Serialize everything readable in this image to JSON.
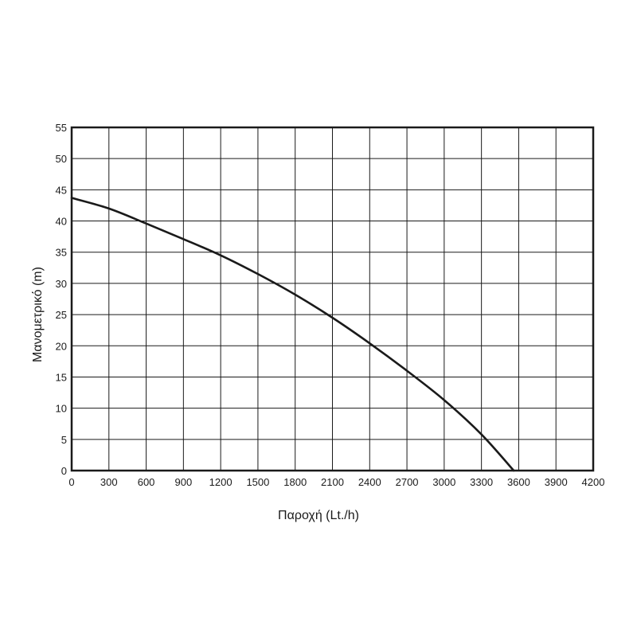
{
  "chart_data": {
    "type": "line",
    "xlabel": "Παροχή (Lt./h)",
    "ylabel": "Μανομετρικό  (m)",
    "xlim": [
      0,
      4200
    ],
    "ylim": [
      0,
      55
    ],
    "x_ticks": [
      "0",
      "300",
      "600",
      "900",
      "1200",
      "1500",
      "1800",
      "2100",
      "2400",
      "2700",
      "3000",
      "3300",
      "3600",
      "3900",
      "4200"
    ],
    "y_ticks": [
      "0",
      "5",
      "10",
      "15",
      "20",
      "25",
      "30",
      "35",
      "40",
      "45",
      "50",
      "55"
    ],
    "grid": true,
    "series": [
      {
        "color": "#1a1a1a",
        "x": [
          0,
          300,
          600,
          900,
          1200,
          1500,
          1800,
          2100,
          2400,
          2700,
          3000,
          3300,
          3560
        ],
        "y": [
          43.7,
          42.0,
          39.6,
          37.1,
          34.5,
          31.5,
          28.2,
          24.5,
          20.4,
          16.0,
          11.3,
          5.8,
          0
        ]
      }
    ]
  }
}
